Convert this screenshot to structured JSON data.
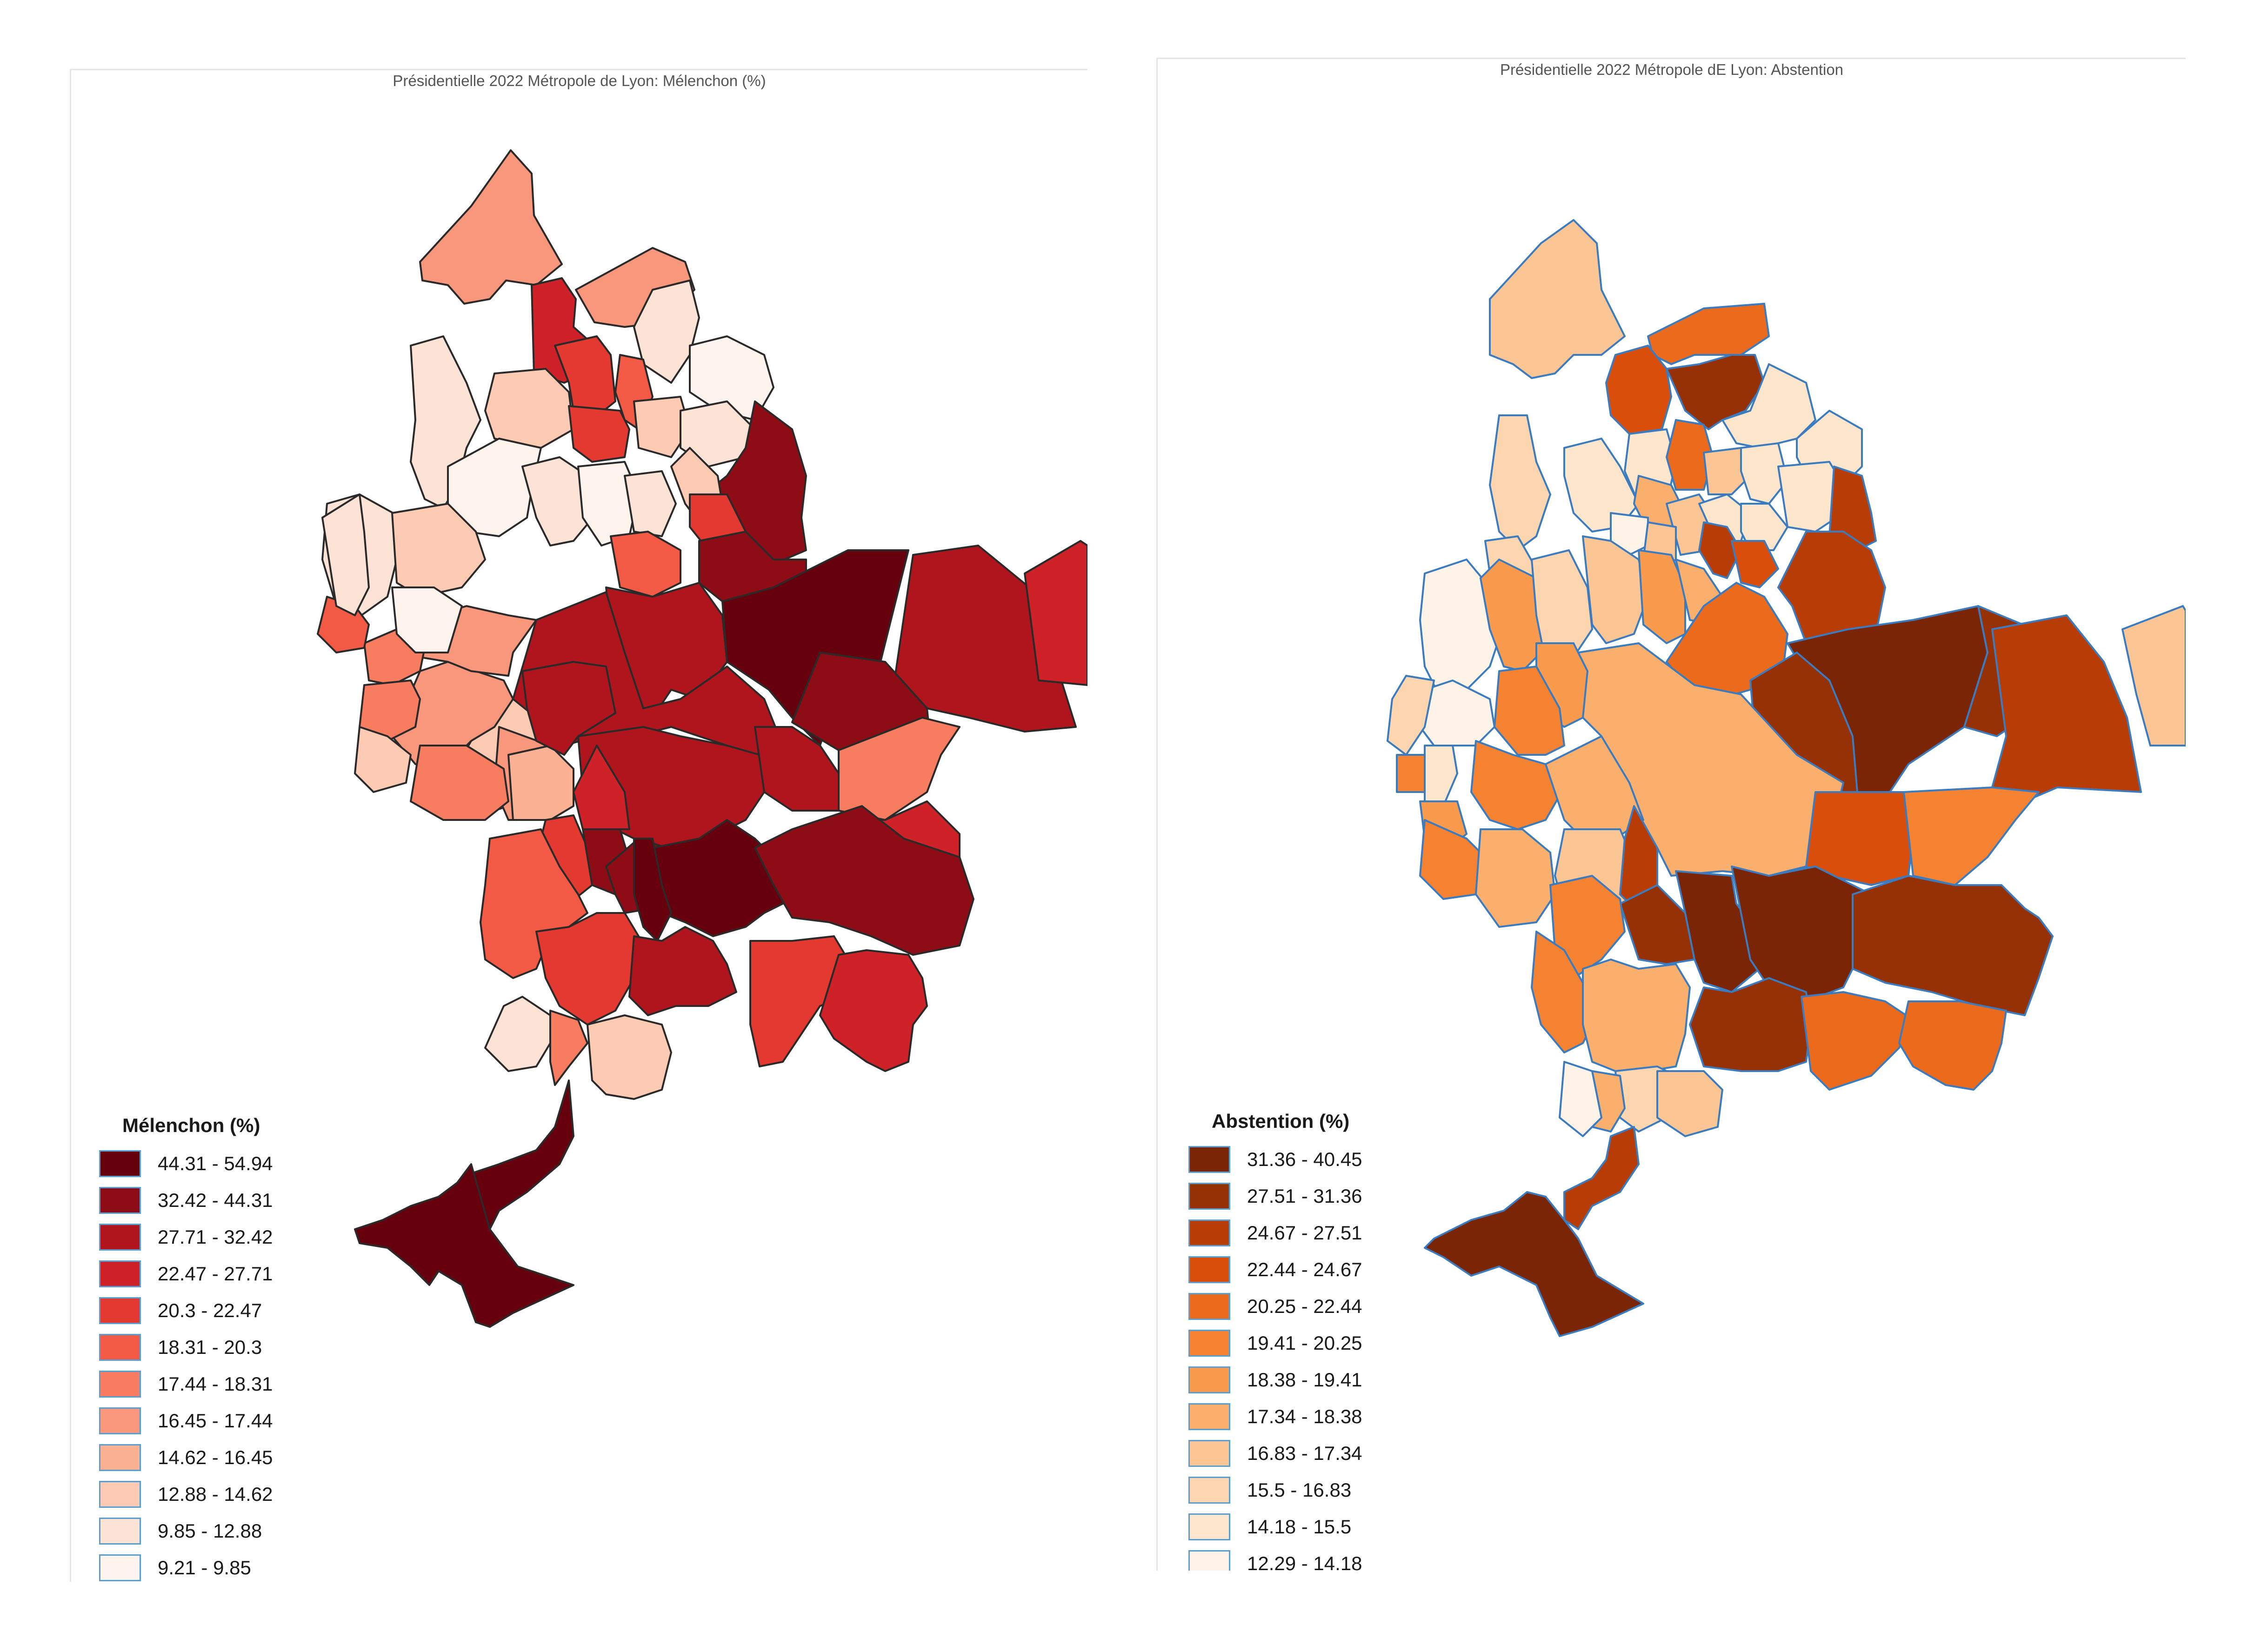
{
  "maps": [
    {
      "title": "Présidentielle 2022 Métropole de Lyon: Mélenchon (%)",
      "legend_title": "Mélenchon (%)",
      "legend": [
        {
          "label": "44.31 - 54.94",
          "color": "#67000d"
        },
        {
          "label": "32.42 - 44.31",
          "color": "#8d0c15"
        },
        {
          "label": "27.71 - 32.42",
          "color": "#b0141c"
        },
        {
          "label": "22.47 - 27.71",
          "color": "#ce2228"
        },
        {
          "label": "20.3 - 22.47",
          "color": "#e33930"
        },
        {
          "label": "18.31 - 20.3",
          "color": "#f35a46"
        },
        {
          "label": "17.44 - 18.31",
          "color": "#f87c60"
        },
        {
          "label": "16.45 - 17.44",
          "color": "#f9977c"
        },
        {
          "label": "14.62 - 16.45",
          "color": "#fbb194"
        },
        {
          "label": "12.88 - 14.62",
          "color": "#fdcbb3"
        },
        {
          "label": "9.85 - 12.88",
          "color": "#fde2d6"
        },
        {
          "label": "9.21 - 9.85",
          "color": "#fff3ee"
        }
      ]
    },
    {
      "title": "Présidentielle 2022 Métropole dE Lyon: Abstention",
      "legend_title": "Abstention (%)",
      "legend": [
        {
          "label": "31.36 - 40.45",
          "color": "#7a2506"
        },
        {
          "label": "27.51 - 31.36",
          "color": "#963005"
        },
        {
          "label": "24.67 - 27.51",
          "color": "#b83c05"
        },
        {
          "label": "22.44 - 24.67",
          "color": "#d94e0b"
        },
        {
          "label": "20.25 - 22.44",
          "color": "#ec6a1b"
        },
        {
          "label": "19.41 - 20.25",
          "color": "#f58230"
        },
        {
          "label": "18.38 - 19.41",
          "color": "#f99a4c"
        },
        {
          "label": "17.34 - 18.38",
          "color": "#fbaf6d"
        },
        {
          "label": "16.83 - 17.34",
          "color": "#fcc594"
        },
        {
          "label": "15.5 - 16.83",
          "color": "#fdd6b0"
        },
        {
          "label": "14.18 - 15.5",
          "color": "#fee6cd"
        },
        {
          "label": "12.29 - 14.18",
          "color": "#fff2e6"
        }
      ]
    }
  ]
}
